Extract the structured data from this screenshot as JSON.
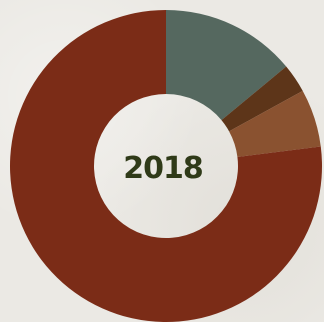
{
  "chart_data": {
    "type": "pie",
    "donut": true,
    "center_label": "2018",
    "slices": [
      {
        "value": 0.14,
        "color": "#55685f"
      },
      {
        "value": 0.03,
        "color": "#5d3519"
      },
      {
        "value": 0.06,
        "color": "#8a5230"
      },
      {
        "value": 0.77,
        "color": "#7b2c17"
      }
    ]
  }
}
